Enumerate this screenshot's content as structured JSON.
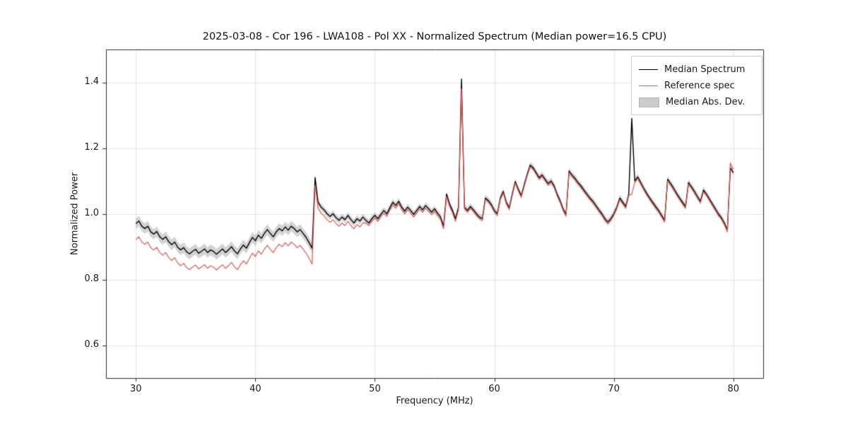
{
  "figure": {
    "title": "2025-03-08 - Cor 196 - LWA108 - Pol XX - Normalized Spectrum (Median power=16.5 CPU)",
    "xlabel": "Frequency (MHz)",
    "ylabel": "Normalized Power"
  },
  "chart_data": {
    "type": "line",
    "title": "2025-03-08 - Cor 196 - LWA108 - Pol XX - Normalized Spectrum (Median power=16.5 CPU)",
    "xlabel": "Frequency (MHz)",
    "ylabel": "Normalized Power",
    "xlim": [
      27.5,
      82.5
    ],
    "ylim": [
      0.5,
      1.5
    ],
    "grid": true,
    "legend_position": "upper right",
    "xticks": [
      {
        "v": 30,
        "label": "30"
      },
      {
        "v": 40,
        "label": "40"
      },
      {
        "v": 50,
        "label": "50"
      },
      {
        "v": 60,
        "label": "60"
      },
      {
        "v": 70,
        "label": "70"
      },
      {
        "v": 80,
        "label": "80"
      }
    ],
    "yticks": [
      {
        "v": 0.6,
        "label": "0.6"
      },
      {
        "v": 0.8,
        "label": "0.8"
      },
      {
        "v": 1.0,
        "label": "1.0"
      },
      {
        "v": 1.2,
        "label": "1.2"
      },
      {
        "v": 1.4,
        "label": "1.4"
      }
    ],
    "colors": {
      "median": "#000000",
      "reference": "#e0605c",
      "mad_band": "#999999"
    },
    "legend": [
      {
        "label": "Median Spectrum",
        "type": "line",
        "series": "median"
      },
      {
        "label": "Reference spec",
        "type": "line",
        "series": "reference"
      },
      {
        "label": "Median Abs. Dev.",
        "type": "patch",
        "series": "mad"
      }
    ],
    "x_start": 30.0,
    "x_step": 0.25,
    "mad_regions": [
      {
        "x0": 27.5,
        "x1": 45.0,
        "hw": 0.016
      },
      {
        "x0": 45.0,
        "x1": 82.5,
        "hw": 0.01
      }
    ],
    "series": [
      {
        "name": "median",
        "values": [
          0.97,
          0.978,
          0.962,
          0.955,
          0.962,
          0.945,
          0.938,
          0.946,
          0.93,
          0.922,
          0.93,
          0.915,
          0.906,
          0.914,
          0.898,
          0.89,
          0.897,
          0.884,
          0.878,
          0.886,
          0.892,
          0.88,
          0.886,
          0.893,
          0.882,
          0.89,
          0.885,
          0.877,
          0.885,
          0.893,
          0.882,
          0.89,
          0.9,
          0.887,
          0.878,
          0.893,
          0.905,
          0.895,
          0.912,
          0.928,
          0.918,
          0.935,
          0.925,
          0.94,
          0.952,
          0.94,
          0.93,
          0.945,
          0.955,
          0.948,
          0.96,
          0.95,
          0.962,
          0.955,
          0.945,
          0.952,
          0.94,
          0.928,
          0.912,
          0.895,
          1.11,
          1.035,
          1.02,
          1.012,
          1.0,
          0.992,
          1.0,
          0.988,
          0.98,
          0.99,
          0.982,
          0.995,
          0.982,
          0.972,
          0.985,
          0.978,
          0.99,
          0.98,
          0.972,
          0.985,
          0.995,
          0.985,
          0.998,
          1.01,
          1.0,
          1.018,
          1.035,
          1.025,
          1.038,
          1.02,
          1.008,
          1.02,
          1.01,
          0.998,
          1.01,
          1.022,
          1.012,
          1.025,
          1.015,
          1.005,
          1.015,
          1.002,
          0.99,
          0.962,
          1.06,
          1.03,
          1.01,
          0.985,
          1.02,
          1.41,
          1.02,
          1.01,
          1.022,
          1.012,
          1.0,
          0.99,
          0.985,
          1.048,
          1.04,
          1.028,
          1.01,
          1.0,
          1.048,
          1.068,
          1.035,
          1.018,
          1.06,
          1.098,
          1.075,
          1.055,
          1.088,
          1.12,
          1.148,
          1.14,
          1.125,
          1.11,
          1.118,
          1.105,
          1.092,
          1.1,
          1.085,
          1.06,
          1.04,
          1.015,
          0.998,
          1.13,
          1.118,
          1.108,
          1.095,
          1.085,
          1.072,
          1.06,
          1.048,
          1.038,
          1.025,
          1.012,
          1.0,
          0.985,
          0.975,
          0.985,
          1.0,
          1.02,
          1.048,
          1.035,
          1.022,
          1.06,
          1.29,
          1.1,
          1.112,
          1.095,
          1.078,
          1.062,
          1.048,
          1.035,
          1.022,
          1.01,
          0.995,
          0.98,
          1.105,
          1.092,
          1.078,
          1.062,
          1.048,
          1.035,
          1.022,
          1.095,
          1.082,
          1.068,
          1.052,
          1.038,
          1.072,
          1.06,
          1.045,
          1.03,
          1.015,
          1.0,
          0.988,
          0.972,
          0.95,
          1.14,
          1.125
        ]
      },
      {
        "name": "reference",
        "values": [
          0.922,
          0.93,
          0.914,
          0.907,
          0.914,
          0.897,
          0.89,
          0.898,
          0.882,
          0.874,
          0.882,
          0.867,
          0.858,
          0.866,
          0.85,
          0.842,
          0.849,
          0.836,
          0.83,
          0.838,
          0.844,
          0.832,
          0.838,
          0.845,
          0.834,
          0.842,
          0.837,
          0.829,
          0.837,
          0.845,
          0.834,
          0.842,
          0.852,
          0.839,
          0.83,
          0.845,
          0.857,
          0.847,
          0.864,
          0.88,
          0.87,
          0.887,
          0.877,
          0.892,
          0.904,
          0.892,
          0.882,
          0.897,
          0.907,
          0.9,
          0.912,
          0.902,
          0.914,
          0.907,
          0.897,
          0.904,
          0.892,
          0.88,
          0.864,
          0.847,
          1.085,
          1.017,
          1.002,
          0.994,
          0.982,
          0.974,
          0.982,
          0.97,
          0.962,
          0.972,
          0.964,
          0.977,
          0.964,
          0.954,
          0.967,
          0.96,
          0.972,
          0.972,
          0.964,
          0.977,
          0.987,
          0.977,
          0.99,
          1.002,
          0.992,
          1.01,
          1.027,
          1.017,
          1.03,
          1.012,
          1.0,
          1.012,
          1.002,
          0.99,
          1.002,
          1.014,
          1.004,
          1.017,
          1.007,
          0.997,
          1.007,
          0.994,
          0.982,
          0.954,
          1.052,
          1.022,
          1.002,
          0.977,
          1.012,
          1.38,
          1.015,
          1.005,
          1.017,
          1.007,
          0.995,
          0.985,
          0.98,
          1.043,
          1.035,
          1.023,
          1.005,
          0.995,
          1.043,
          1.063,
          1.03,
          1.013,
          1.055,
          1.093,
          1.07,
          1.05,
          1.083,
          1.115,
          1.143,
          1.135,
          1.12,
          1.105,
          1.113,
          1.1,
          1.087,
          1.095,
          1.08,
          1.055,
          1.035,
          1.01,
          0.993,
          1.125,
          1.113,
          1.103,
          1.09,
          1.08,
          1.067,
          1.055,
          1.043,
          1.033,
          1.02,
          1.007,
          0.995,
          0.98,
          0.97,
          0.98,
          0.995,
          1.015,
          1.043,
          1.03,
          1.017,
          1.055,
          1.06,
          1.095,
          1.107,
          1.09,
          1.073,
          1.057,
          1.043,
          1.03,
          1.017,
          1.005,
          0.99,
          0.975,
          1.1,
          1.087,
          1.073,
          1.057,
          1.043,
          1.03,
          1.017,
          1.09,
          1.077,
          1.063,
          1.047,
          1.033,
          1.067,
          1.055,
          1.04,
          1.025,
          1.01,
          0.995,
          0.983,
          0.967,
          0.945,
          1.155,
          1.135
        ]
      }
    ]
  }
}
